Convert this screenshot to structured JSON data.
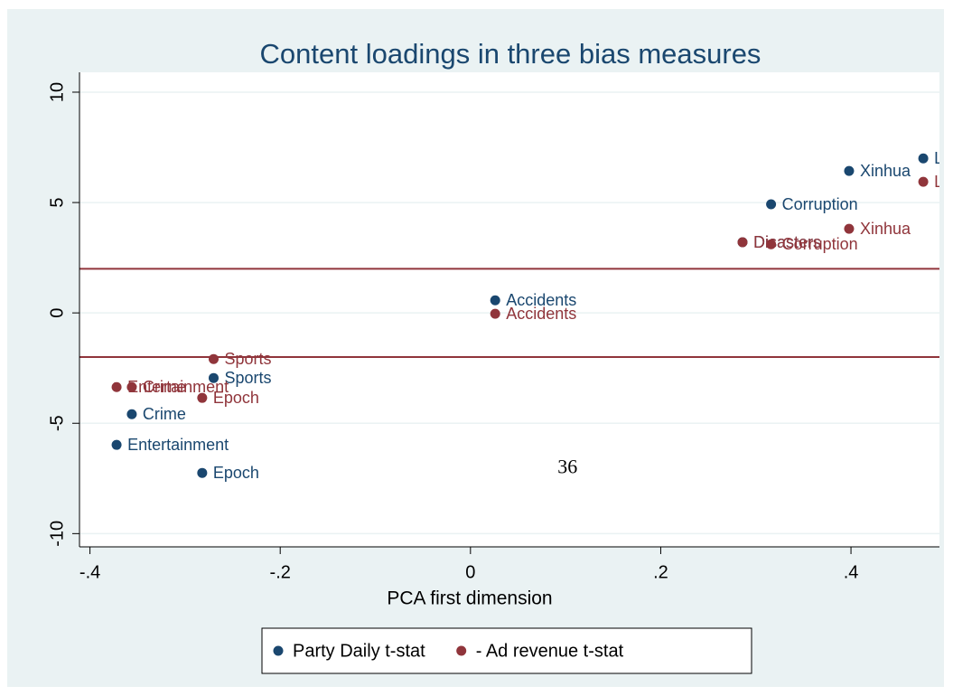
{
  "chart_data": {
    "type": "scatter",
    "title": "Content loadings in three bias measures",
    "x_label": "PCA first dimension",
    "annotation": {
      "text": "36",
      "x": 0.102,
      "y": -7.05
    },
    "xlim": [
      -0.411,
      0.493
    ],
    "ylim": [
      -10.6,
      10.9
    ],
    "xticks": [
      {
        "value": -0.4,
        "label": "-.4"
      },
      {
        "value": -0.2,
        "label": "-.2"
      },
      0,
      {
        "value": 0.2,
        "label": ".2"
      },
      {
        "value": 0.4,
        "label": ".4"
      }
    ],
    "yticks": [
      -10,
      -5,
      0,
      5,
      10
    ],
    "grid": true,
    "ylines": [
      2,
      -2
    ],
    "yline_color": "#90353b",
    "legend": "bottom",
    "series": [
      {
        "name": "Party Daily t-stat",
        "color": "#1a476f",
        "x": [
          0.476,
          0.398,
          0.316,
          0.286,
          0.026,
          -0.27,
          -0.356,
          -0.372,
          -0.282
        ],
        "values": [
          7.0,
          6.43,
          4.92,
          3.2,
          0.57,
          -2.95,
          -4.59,
          -5.98,
          -7.25
        ],
        "labels": [
          "Le",
          "Xinhua",
          "Corruption",
          "Disasters",
          "Accidents",
          "Sports",
          "Crime",
          "Entertainment",
          "Epoch"
        ]
      },
      {
        "name": "- Ad revenue t-stat",
        "color": "#90353b",
        "x": [
          0.476,
          0.398,
          0.286,
          0.316,
          0.026,
          -0.27,
          -0.356,
          -0.372,
          -0.282
        ],
        "values": [
          5.94,
          3.81,
          3.2,
          3.11,
          -0.04,
          -2.09,
          -3.36,
          -3.36,
          -3.85
        ],
        "labels": [
          "Le",
          "Xinhua",
          "Disasters",
          "Corruption",
          "Accidents",
          "Sports",
          "Crime",
          "Entertainment",
          "Epoch"
        ]
      }
    ]
  }
}
